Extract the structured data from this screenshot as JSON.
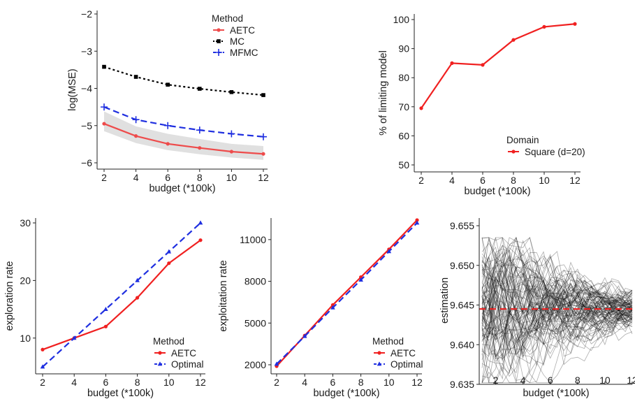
{
  "chart_data": [
    {
      "id": "mse",
      "type": "line",
      "xlabel": "budget (*100k)",
      "ylabel": "log(MSE)",
      "x": [
        2,
        4,
        6,
        8,
        10,
        12
      ],
      "xlim": [
        2,
        12
      ],
      "ylim": [
        -6,
        -2
      ],
      "xticks": [
        "2",
        "4",
        "6",
        "8",
        "10",
        "12"
      ],
      "yticks": [
        "−2",
        "−3",
        "−4",
        "−5",
        "−6"
      ],
      "legend_title": "Method",
      "legend_position": "top-right",
      "series": [
        {
          "name": "AETC",
          "values": [
            -4.95,
            -5.28,
            -5.49,
            -5.6,
            -5.7,
            -5.76
          ],
          "color": "#ee4b4b",
          "style": "solid",
          "marker": "circle",
          "band_upper": [
            -4.62,
            -5.02,
            -5.22,
            -5.36,
            -5.49,
            -5.55
          ],
          "band_lower": [
            -5.15,
            -5.47,
            -5.66,
            -5.77,
            -5.86,
            -5.92
          ]
        },
        {
          "name": "MC",
          "values": [
            -3.42,
            -3.69,
            -3.9,
            -4.01,
            -4.1,
            -4.18
          ],
          "color": "#000000",
          "style": "dotted",
          "marker": "square"
        },
        {
          "name": "MFMC",
          "values": [
            -4.5,
            -4.84,
            -5.0,
            -5.12,
            -5.22,
            -5.3
          ],
          "color": "#1f2fe0",
          "style": "dashed",
          "marker": "plus"
        }
      ]
    },
    {
      "id": "pct",
      "type": "line",
      "xlabel": "budget (*100k)",
      "ylabel": "% of limiting model",
      "x": [
        2,
        4,
        6,
        8,
        10,
        12
      ],
      "xlim": [
        2,
        12
      ],
      "ylim": [
        50,
        100
      ],
      "xticks": [
        "2",
        "4",
        "6",
        "8",
        "10",
        "12"
      ],
      "yticks": [
        "100",
        "90",
        "80",
        "70",
        "60",
        "50"
      ],
      "legend_title": "Domain",
      "legend_position": "bottom-right",
      "series": [
        {
          "name": "Square (d=20)",
          "values": [
            69.5,
            85,
            84.4,
            93,
            97.5,
            98.5
          ],
          "color": "#f02020",
          "style": "solid",
          "marker": "circle"
        }
      ]
    },
    {
      "id": "explore",
      "type": "line",
      "xlabel": "budget (*100k)",
      "ylabel": "exploration rate",
      "x": [
        2,
        4,
        6,
        8,
        10,
        12
      ],
      "xlim": [
        2,
        12
      ],
      "ylim": [
        5,
        30
      ],
      "xticks": [
        "2",
        "4",
        "6",
        "8",
        "10",
        "12"
      ],
      "yticks": [
        "30",
        "20",
        "10"
      ],
      "legend_title": "Method",
      "legend_position": "bottom-right",
      "series": [
        {
          "name": "AETC",
          "values": [
            8,
            10,
            12,
            17,
            23,
            27
          ],
          "color": "#f02020",
          "style": "solid",
          "marker": "circle"
        },
        {
          "name": "Optimal",
          "values": [
            5,
            10,
            15,
            20,
            25,
            30
          ],
          "color": "#1f2fe0",
          "style": "dashed",
          "marker": "triangle"
        }
      ]
    },
    {
      "id": "exploit",
      "type": "line",
      "xlabel": "budget (*100k)",
      "ylabel": "exploitation rate",
      "x": [
        2,
        4,
        6,
        8,
        10,
        12
      ],
      "xlim": [
        2,
        12
      ],
      "ylim": [
        2000,
        12200
      ],
      "xticks": [
        "2",
        "4",
        "6",
        "8",
        "10",
        "12"
      ],
      "yticks": [
        "11000",
        "8000",
        "5000",
        "2000"
      ],
      "legend_title": "Method",
      "legend_position": "bottom-right",
      "series": [
        {
          "name": "AETC",
          "values": [
            1900,
            4100,
            6300,
            8300,
            10300,
            12400
          ],
          "color": "#f02020",
          "style": "solid",
          "marker": "circle"
        },
        {
          "name": "Optimal",
          "values": [
            2050,
            4050,
            6100,
            8100,
            10150,
            12200
          ],
          "color": "#1f2fe0",
          "style": "dashed",
          "marker": "triangle"
        }
      ]
    },
    {
      "id": "estimation",
      "type": "line",
      "xlabel": "budget (*100k)",
      "ylabel": "estimation",
      "xlim": [
        1,
        12
      ],
      "ylim": [
        9.635,
        9.655
      ],
      "xticks": [
        "2",
        "4",
        "6",
        "8",
        "10",
        "12"
      ],
      "yticks": [
        "9.655",
        "9.650",
        "9.645",
        "9.640",
        "9.635"
      ],
      "reference_line": {
        "value": 9.6445,
        "color": "#f02020",
        "style": "dashed"
      },
      "trajectories": {
        "count": 100,
        "color": "#000000",
        "spread_start": 0.008,
        "spread_end": 0.0022,
        "center": 9.6445
      }
    }
  ]
}
